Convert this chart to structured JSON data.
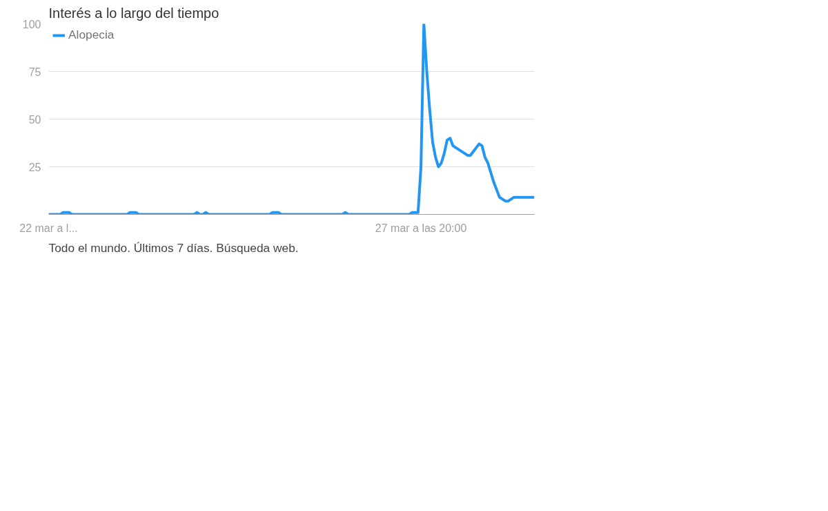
{
  "chart_data": {
    "type": "line",
    "title": "Interés a lo largo del tiempo",
    "annotations": [
      "Todo el mundo. Últimos 7 días. Búsqueda web."
    ],
    "categories": [
      "22 mar a l...",
      null,
      null,
      null,
      null,
      null,
      null,
      null,
      null,
      null,
      null,
      null,
      null,
      null,
      null,
      null,
      null,
      null,
      null,
      null,
      null,
      null,
      null,
      null,
      null,
      null,
      null,
      null,
      null,
      null,
      null,
      null,
      null,
      null,
      null,
      null,
      null,
      null,
      null,
      null,
      null,
      null,
      null,
      null,
      null,
      null,
      null,
      null,
      null,
      null,
      null,
      null,
      null,
      null,
      null,
      null,
      null,
      null,
      null,
      null,
      null,
      null,
      null,
      null,
      null,
      null,
      null,
      null,
      null,
      null,
      null,
      null,
      null,
      null,
      null,
      null,
      null,
      null,
      null,
      null,
      null,
      null,
      null,
      null,
      null,
      null,
      null,
      null,
      null,
      null,
      null,
      null,
      null,
      null,
      null,
      null,
      null,
      null,
      null,
      null,
      null,
      null,
      null,
      null,
      null,
      null,
      null,
      null,
      null,
      null,
      null,
      null,
      null,
      null,
      null,
      null,
      null,
      null,
      null,
      null,
      null,
      null,
      null,
      null,
      null,
      null,
      null,
      null,
      "27 mar a las 20:00",
      null,
      null,
      null,
      null,
      null,
      null,
      null,
      null,
      null,
      null,
      null,
      null,
      null,
      null,
      null,
      null,
      null,
      null,
      null,
      null,
      null,
      null,
      null,
      null,
      null,
      null,
      null,
      null,
      null,
      null,
      null,
      null,
      null,
      null,
      null,
      null,
      null,
      null,
      null
    ],
    "series": [
      {
        "name": "Alopecia",
        "color": "#2196f3",
        "values": [
          0,
          0,
          0,
          0,
          0,
          1,
          1,
          1,
          0,
          0,
          0,
          0,
          0,
          0,
          0,
          0,
          0,
          0,
          0,
          0,
          0,
          0,
          0,
          0,
          0,
          0,
          0,
          0,
          1,
          1,
          1,
          0,
          0,
          0,
          0,
          0,
          0,
          0,
          0,
          0,
          0,
          0,
          0,
          0,
          0,
          0,
          0,
          0,
          0,
          0,
          0,
          1,
          0,
          0,
          1,
          0,
          0,
          0,
          0,
          0,
          0,
          0,
          0,
          0,
          0,
          0,
          0,
          0,
          0,
          0,
          0,
          0,
          0,
          0,
          0,
          0,
          0,
          1,
          1,
          1,
          0,
          0,
          0,
          0,
          0,
          0,
          0,
          0,
          0,
          0,
          0,
          0,
          0,
          0,
          0,
          0,
          0,
          0,
          0,
          0,
          0,
          0,
          1,
          0,
          0,
          0,
          0,
          0,
          0,
          0,
          0,
          0,
          0,
          0,
          0,
          0,
          0,
          0,
          0,
          0,
          0,
          0,
          0,
          0,
          0,
          1,
          1,
          1,
          25,
          100,
          75,
          55,
          38,
          30,
          25,
          27,
          32,
          39,
          40,
          36,
          35,
          34,
          33,
          32,
          31,
          31,
          33,
          35,
          37,
          36,
          30,
          27,
          22,
          17,
          13,
          9,
          8,
          7,
          7,
          8,
          9,
          9,
          9,
          9,
          9,
          9,
          9,
          9
        ]
      }
    ],
    "ylim": [
      0,
      100
    ],
    "yticks": [
      25,
      50,
      75,
      100
    ],
    "grid": "y",
    "legend": "top left",
    "marker": "none",
    "line_style": "solid"
  }
}
